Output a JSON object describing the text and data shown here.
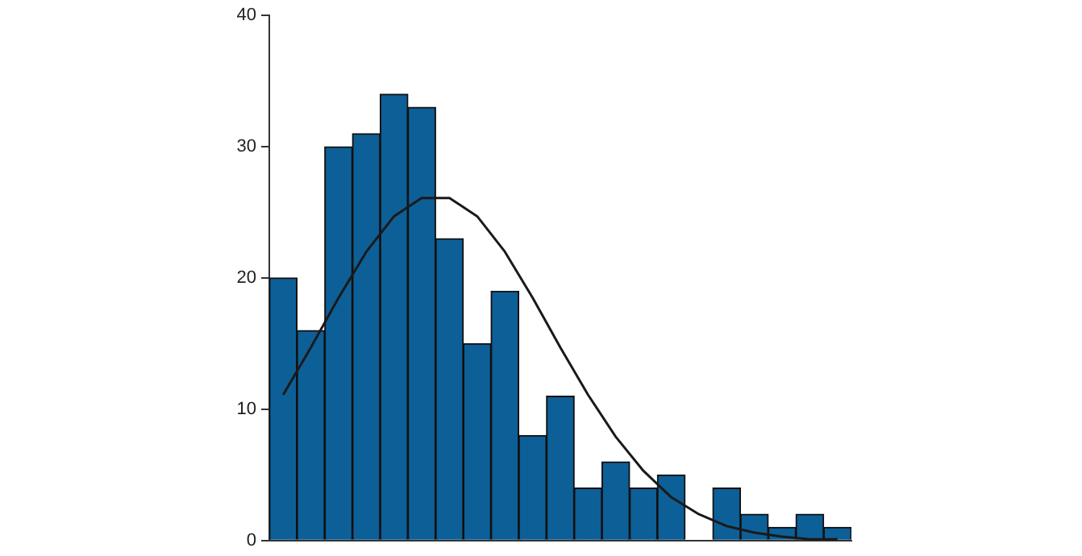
{
  "chart_data": {
    "type": "bar",
    "categories": [
      null,
      null,
      null,
      null,
      null,
      null,
      null,
      null,
      null,
      null,
      null,
      null,
      null,
      null,
      null,
      null,
      null,
      null,
      null,
      null,
      null
    ],
    "ylim": [
      0,
      40
    ],
    "yticks": [
      0,
      10,
      20,
      30,
      40
    ],
    "tick_labels": "y",
    "series": [
      {
        "color": "#0d5f97",
        "values": [
          20,
          16,
          30,
          31,
          34,
          33,
          23,
          15,
          19,
          8,
          11,
          4,
          6,
          4,
          5,
          0,
          4,
          2,
          1,
          2,
          1
        ]
      },
      {
        "type": "line",
        "color": "#1a1a1a",
        "values": [
          11.1,
          14.7,
          18.5,
          22.0,
          24.7,
          26.1,
          26.1,
          24.7,
          22.0,
          18.5,
          14.7,
          11.1,
          7.9,
          5.3,
          3.3,
          2.0,
          1.1,
          0.6,
          0.3,
          0.1,
          0.1
        ]
      }
    ]
  }
}
